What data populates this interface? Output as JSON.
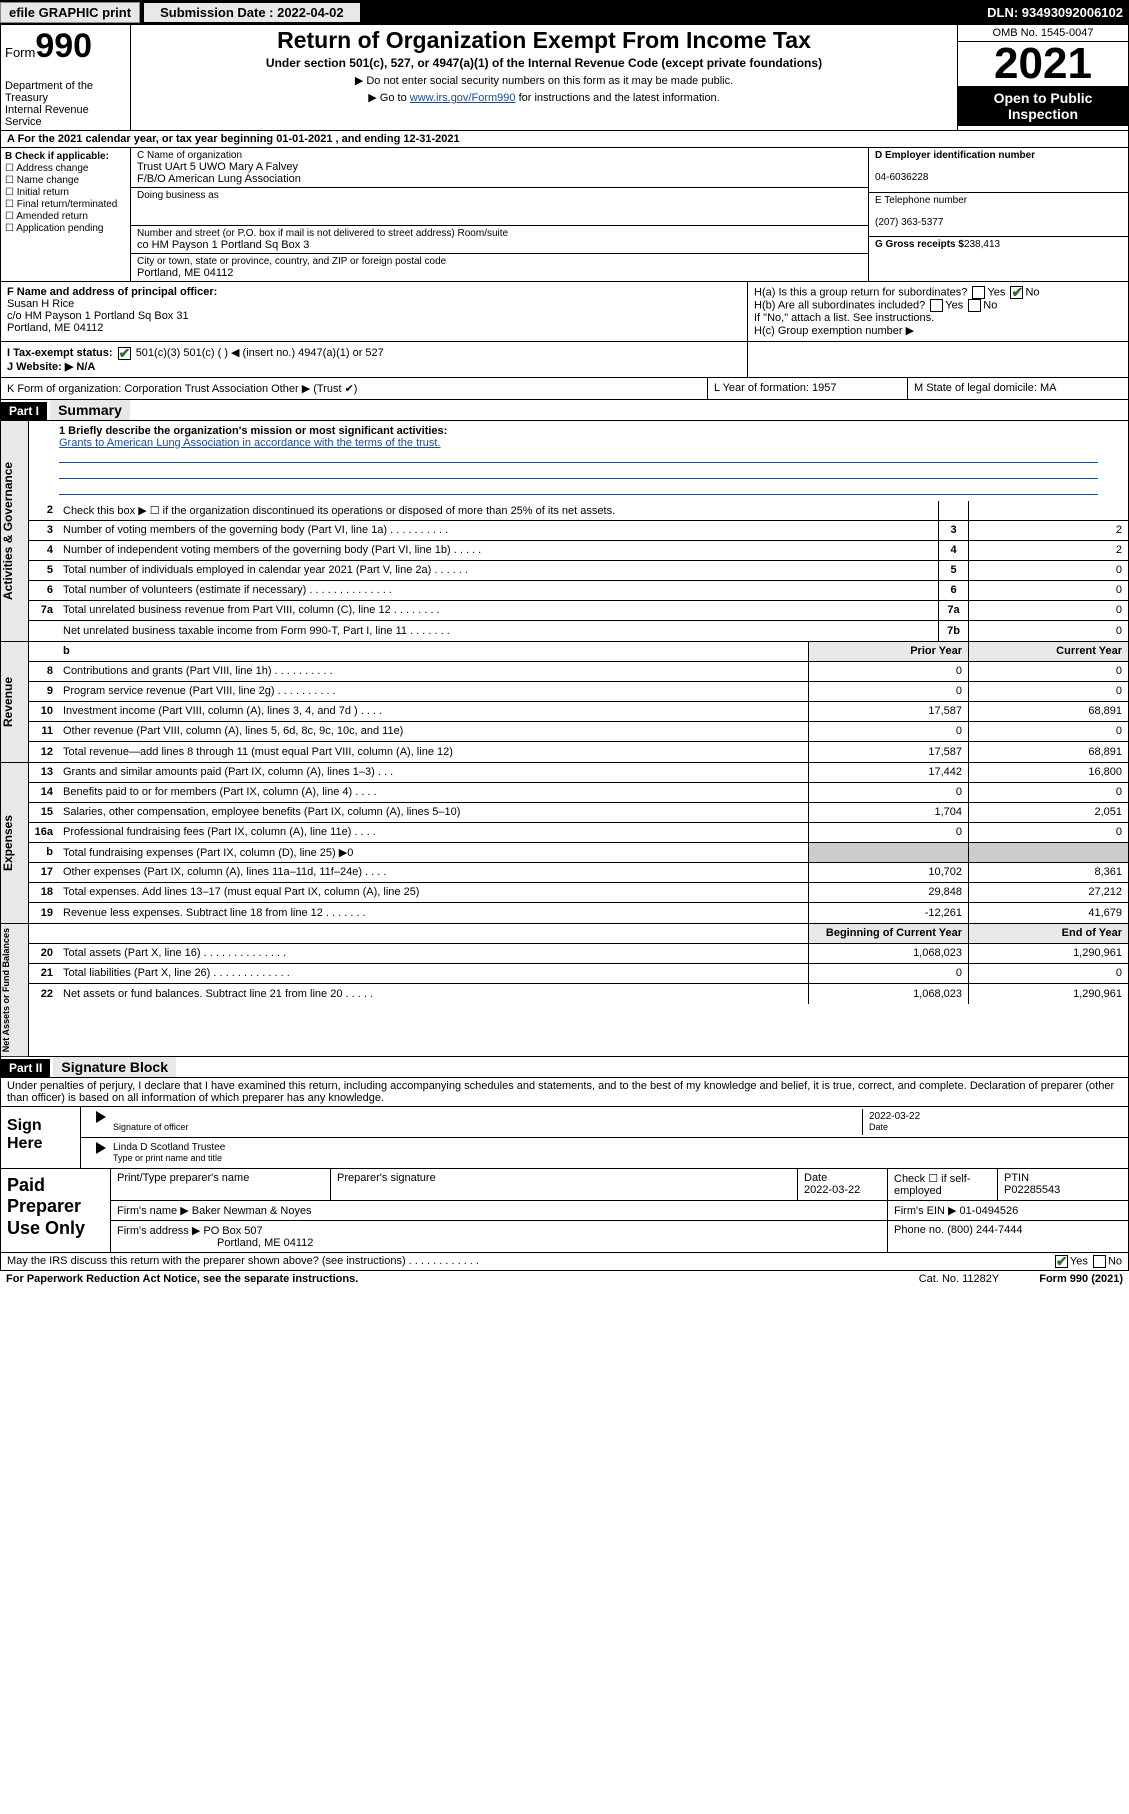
{
  "topbar": {
    "efile": "efile GRAPHIC print",
    "submission_label": "Submission Date : 2022-04-02",
    "dln": "DLN: 93493092006102"
  },
  "header": {
    "form_word": "Form",
    "form_num": "990",
    "dept": "Department of the Treasury",
    "irs": "Internal Revenue Service",
    "title": "Return of Organization Exempt From Income Tax",
    "subtitle": "Under section 501(c), 527, or 4947(a)(1) of the Internal Revenue Code (except private foundations)",
    "note1": "▶ Do not enter social security numbers on this form as it may be made public.",
    "note2_pre": "▶ Go to ",
    "note2_link": "www.irs.gov/Form990",
    "note2_post": " for instructions and the latest information.",
    "omb": "OMB No. 1545-0047",
    "year": "2021",
    "open": "Open to Public Inspection"
  },
  "lineA": "A For the 2021 calendar year, or tax year beginning 01-01-2021   , and ending 12-31-2021",
  "boxB": {
    "hdr": "B Check if applicable:",
    "opts": [
      "☐ Address change",
      "☐ Name change",
      "☐ Initial return",
      "☐ Final return/terminated",
      "☐ Amended return",
      "☐ Application pending"
    ]
  },
  "boxC": {
    "name_lbl": "C Name of organization",
    "name1": "Trust UArt 5 UWO Mary A Falvey",
    "name2": "F/B/O American Lung Association",
    "dba_lbl": "Doing business as",
    "addr_lbl": "Number and street (or P.O. box if mail is not delivered to street address)     Room/suite",
    "addr": "co HM Payson 1 Portland Sq Box 3",
    "city_lbl": "City or town, state or province, country, and ZIP or foreign postal code",
    "city": "Portland, ME  04112"
  },
  "boxD": {
    "ein_lbl": "D Employer identification number",
    "ein": "04-6036228",
    "tel_lbl": "E Telephone number",
    "tel": "(207) 363-5377",
    "gross_lbl": "G Gross receipts $",
    "gross": "238,413"
  },
  "boxF": {
    "lbl": "F Name and address of principal officer:",
    "name": "Susan H Rice",
    "addr1": "c/o HM Payson 1 Portland Sq Box 31",
    "addr2": "Portland, ME  04112"
  },
  "boxH": {
    "a": "H(a)  Is this a group return for subordinates?",
    "b": "H(b)  Are all subordinates included?",
    "note": "If \"No,\" attach a list. See instructions.",
    "c": "H(c)  Group exemption number ▶"
  },
  "rowI": "I   Tax-exempt status:",
  "rowI_opts": "501(c)(3)       501(c) (  ) ◀ (insert no.)       4947(a)(1) or       527",
  "rowJ": "J   Website: ▶ N/A",
  "rowK": "K Form of organization:       Corporation       Trust       Association       Other ▶",
  "rowL": "L Year of formation: 1957",
  "rowM": "M State of legal domicile: MA",
  "part1": "Part I",
  "part1_title": "Summary",
  "mission": {
    "q": "1  Briefly describe the organization's mission or most significant activities:",
    "text": "Grants to American Lung Association in accordance with the terms of the trust."
  },
  "gov_lines": [
    {
      "n": "2",
      "d": "Check this box ▶ ☐  if the organization discontinued its operations or disposed of more than 25% of its net assets."
    },
    {
      "n": "3",
      "d": "Number of voting members of the governing body (Part VI, line 1a)  .  .  .  .  .  .  .  .  .  .",
      "rn": "3",
      "v": "2"
    },
    {
      "n": "4",
      "d": "Number of independent voting members of the governing body (Part VI, line 1b)  .  .  .  .  .",
      "rn": "4",
      "v": "2"
    },
    {
      "n": "5",
      "d": "Total number of individuals employed in calendar year 2021 (Part V, line 2a)  .  .  .  .  .  .",
      "rn": "5",
      "v": "0"
    },
    {
      "n": "6",
      "d": "Total number of volunteers (estimate if necessary)  .  .  .  .  .  .  .  .  .  .  .  .  .  .",
      "rn": "6",
      "v": "0"
    },
    {
      "n": "7a",
      "d": "Total unrelated business revenue from Part VIII, column (C), line 12  .  .  .  .  .  .  .  .",
      "rn": "7a",
      "v": "0"
    },
    {
      "n": "",
      "d": "Net unrelated business taxable income from Form 990-T, Part I, line 11  .  .  .  .  .  .  .",
      "rn": "7b",
      "v": "0"
    }
  ],
  "rev_hdr": {
    "prior": "Prior Year",
    "curr": "Current Year"
  },
  "rev_lines": [
    {
      "n": "8",
      "d": "Contributions and grants (Part VIII, line 1h)  .  .  .  .  .  .  .  .  .  .",
      "p": "0",
      "c": "0"
    },
    {
      "n": "9",
      "d": "Program service revenue (Part VIII, line 2g)  .  .  .  .  .  .  .  .  .  .",
      "p": "0",
      "c": "0"
    },
    {
      "n": "10",
      "d": "Investment income (Part VIII, column (A), lines 3, 4, and 7d )  .  .  .  .",
      "p": "17,587",
      "c": "68,891"
    },
    {
      "n": "11",
      "d": "Other revenue (Part VIII, column (A), lines 5, 6d, 8c, 9c, 10c, and 11e)",
      "p": "0",
      "c": "0"
    },
    {
      "n": "12",
      "d": "Total revenue—add lines 8 through 11 (must equal Part VIII, column (A), line 12)",
      "p": "17,587",
      "c": "68,891"
    }
  ],
  "exp_lines": [
    {
      "n": "13",
      "d": "Grants and similar amounts paid (Part IX, column (A), lines 1–3)  .  .  .",
      "p": "17,442",
      "c": "16,800"
    },
    {
      "n": "14",
      "d": "Benefits paid to or for members (Part IX, column (A), line 4)  .  .  .  .",
      "p": "0",
      "c": "0"
    },
    {
      "n": "15",
      "d": "Salaries, other compensation, employee benefits (Part IX, column (A), lines 5–10)",
      "p": "1,704",
      "c": "2,051"
    },
    {
      "n": "16a",
      "d": "Professional fundraising fees (Part IX, column (A), line 11e)  .  .  .  .",
      "p": "0",
      "c": "0"
    },
    {
      "n": "b",
      "d": "Total fundraising expenses (Part IX, column (D), line 25) ▶0",
      "p": "",
      "c": "",
      "grey": true
    },
    {
      "n": "17",
      "d": "Other expenses (Part IX, column (A), lines 11a–11d, 11f–24e)  .  .  .  .",
      "p": "10,702",
      "c": "8,361"
    },
    {
      "n": "18",
      "d": "Total expenses. Add lines 13–17 (must equal Part IX, column (A), line 25)",
      "p": "29,848",
      "c": "27,212"
    },
    {
      "n": "19",
      "d": "Revenue less expenses. Subtract line 18 from line 12  .  .  .  .  .  .  .",
      "p": "-12,261",
      "c": "41,679"
    }
  ],
  "net_hdr": {
    "beg": "Beginning of Current Year",
    "end": "End of Year"
  },
  "net_lines": [
    {
      "n": "20",
      "d": "Total assets (Part X, line 16)  .  .  .  .  .  .  .  .  .  .  .  .  .  .",
      "p": "1,068,023",
      "c": "1,290,961"
    },
    {
      "n": "21",
      "d": "Total liabilities (Part X, line 26)  .  .  .  .  .  .  .  .  .  .  .  .  .",
      "p": "0",
      "c": "0"
    },
    {
      "n": "22",
      "d": "Net assets or fund balances. Subtract line 21 from line 20  .  .  .  .  .",
      "p": "1,068,023",
      "c": "1,290,961"
    }
  ],
  "part2": "Part II",
  "part2_title": "Signature Block",
  "sig_decl": "Under penalties of perjury, I declare that I have examined this return, including accompanying schedules and statements, and to the best of my knowledge and belief, it is true, correct, and complete. Declaration of preparer (other than officer) is based on all information of which preparer has any knowledge.",
  "sign": {
    "here": "Sign Here",
    "sig_lbl": "Signature of officer",
    "date": "2022-03-22",
    "date_lbl": "Date",
    "name": "Linda D Scotland  Trustee",
    "name_lbl": "Type or print name and title"
  },
  "paid": {
    "lab": "Paid Preparer Use Only",
    "r1": {
      "c1": "Print/Type preparer's name",
      "c2": "Preparer's signature",
      "c3": "Date\n2022-03-22",
      "c4": "Check ☐ if self-employed",
      "c5": "PTIN\nP02285543"
    },
    "r2": {
      "c1": "Firm's name    ▶  Baker Newman & Noyes",
      "c2": "Firm's EIN ▶ 01-0494526"
    },
    "r3": {
      "c1": "Firm's address ▶ PO Box 507",
      "c2": "Phone no. (800) 244-7444"
    },
    "r3b": "Portland, ME  04112"
  },
  "discuss": "May the IRS discuss this return with the preparer shown above? (see instructions)  .  .  .  .  .  .  .  .  .  .  .  .",
  "bottom": {
    "l": "For Paperwork Reduction Act Notice, see the separate instructions.",
    "m": "Cat. No. 11282Y",
    "r": "Form 990 (2021)"
  },
  "vtabs": {
    "gov": "Activities & Governance",
    "rev": "Revenue",
    "exp": "Expenses",
    "net": "Net Assets or Fund Balances"
  }
}
